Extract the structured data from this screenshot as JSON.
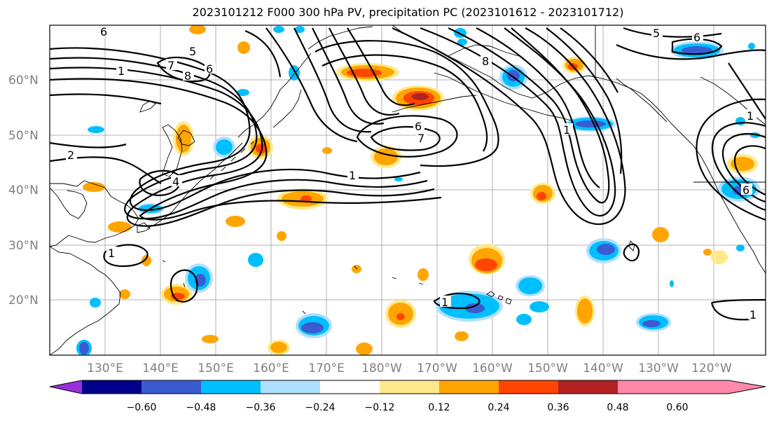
{
  "title": "2023101212 F000 300 hPa PV, precipitation PC (2023101612 - 2023101712)",
  "lat_labels": [
    "60°N",
    "50°N",
    "40°N",
    "30°N",
    "20°N"
  ],
  "lon_labels": [
    "130°E",
    "140°E",
    "150°E",
    "160°E",
    "170°E",
    "180°W",
    "170°W",
    "160°W",
    "150°W",
    "140°W",
    "130°W",
    "120°W"
  ],
  "colorbar": {
    "colors": [
      "#9b30d9",
      "#00008b",
      "#3a5bd1",
      "#00bfff",
      "#b0e0ff",
      "#ffffff",
      "#ffe98a",
      "#ffa500",
      "#ff4500",
      "#b22222",
      "#ff88aa"
    ],
    "labels": [
      "−0.60",
      "−0.48",
      "−0.36",
      "−0.24",
      "−0.12",
      "0.12",
      "0.24",
      "0.36",
      "0.48",
      "0.60"
    ]
  },
  "contour_labels": [
    "6",
    "5",
    "7",
    "8",
    "6",
    "1",
    "2",
    "4",
    "6",
    "7",
    "1",
    "8",
    "5",
    "6",
    "1",
    "6",
    "1",
    "1",
    "1",
    "1"
  ]
}
